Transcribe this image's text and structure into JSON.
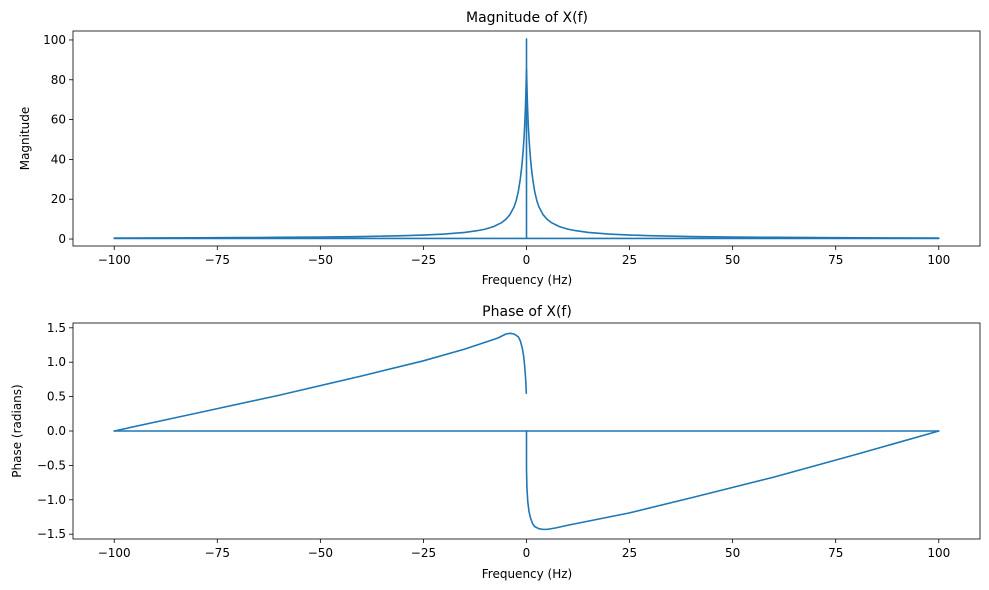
{
  "figure": {
    "background": "#ffffff",
    "series_color": "#1f77b4"
  },
  "chart_data": [
    {
      "type": "line",
      "title": "Magnitude of X(f)",
      "xlabel": "Frequency (Hz)",
      "ylabel": "Magnitude",
      "xlim": [
        -110,
        110
      ],
      "ylim": [
        -3.5,
        104.5
      ],
      "xticks": [
        -100,
        -75,
        -50,
        -25,
        0,
        25,
        50,
        75,
        100
      ],
      "xtick_labels": [
        "−100",
        "−75",
        "−50",
        "−25",
        "0",
        "25",
        "50",
        "75",
        "100"
      ],
      "yticks": [
        0,
        20,
        40,
        60,
        80,
        100
      ],
      "ytick_labels": [
        "0",
        "20",
        "40",
        "60",
        "80",
        "100"
      ],
      "grid": false,
      "series": [
        {
          "x": [
            -100,
            -90,
            -80,
            -70,
            -60,
            -50,
            -40,
            -30,
            -25,
            -20,
            -15,
            -12,
            -10,
            -8,
            -6,
            -5,
            -4,
            -3,
            -2.5,
            -2,
            -1.5,
            -1.2,
            -1,
            -0.8,
            -0.6,
            -0.5,
            -0.4,
            -0.3,
            -0.25,
            -0.2,
            -0.15,
            -0.1,
            -0.05,
            0.01,
            0.05,
            0.1,
            0.15,
            0.2,
            0.25,
            0.3,
            0.4,
            0.5,
            0.6,
            0.8,
            1,
            1.2,
            1.5,
            2,
            2.5,
            3,
            4,
            5,
            6,
            8,
            10,
            12,
            15,
            20,
            25,
            30,
            40,
            50,
            60,
            70,
            80,
            90,
            100
          ],
          "y": [
            0.5,
            0.56,
            0.63,
            0.72,
            0.84,
            1.0,
            1.25,
            1.67,
            2.0,
            2.5,
            3.33,
            4.17,
            4.99,
            6.23,
            8.28,
            9.91,
            12.3,
            16.2,
            19.3,
            23.7,
            30.3,
            35.5,
            39.7,
            44.7,
            50.9,
            54.6,
            58.9,
            63.9,
            66.7,
            69.8,
            73.3,
            77.5,
            81.5,
            85.3,
            81.5,
            77.5,
            73.3,
            69.8,
            66.7,
            63.9,
            58.9,
            54.6,
            50.9,
            44.7,
            39.7,
            35.5,
            30.3,
            23.7,
            19.3,
            16.2,
            12.3,
            9.91,
            8.28,
            6.23,
            4.99,
            4.17,
            3.33,
            2.5,
            2.0,
            1.67,
            1.25,
            1.0,
            0.84,
            0.72,
            0.63,
            0.56,
            0.5
          ]
        },
        {
          "x": [
            0,
            0,
            -100,
            100
          ],
          "y": [
            100.5,
            0.3,
            0.3,
            0.3
          ]
        }
      ]
    },
    {
      "type": "line",
      "title": "Phase of X(f)",
      "xlabel": "Frequency (Hz)",
      "ylabel": "Phase (radians)",
      "xlim": [
        -110,
        110
      ],
      "ylim": [
        -1.57,
        1.57
      ],
      "xticks": [
        -100,
        -75,
        -50,
        -25,
        0,
        25,
        50,
        75,
        100
      ],
      "xtick_labels": [
        "−100",
        "−75",
        "−50",
        "−25",
        "0",
        "25",
        "50",
        "75",
        "100"
      ],
      "yticks": [
        -1.5,
        -1.0,
        -0.5,
        0.0,
        0.5,
        1.0,
        1.5
      ],
      "ytick_labels": [
        "−1.5",
        "−1.0",
        "−0.5",
        "0.0",
        "0.5",
        "1.0",
        "1.5"
      ],
      "grid": false,
      "series": [
        {
          "x": [
            -100,
            -80,
            -60,
            -40,
            -25,
            -15,
            -10,
            -7,
            -5,
            -4,
            -3,
            -2,
            -1.5,
            -1,
            -0.7,
            -0.5,
            -0.3,
            -0.15,
            -0.05
          ],
          "y": [
            0.0,
            0.26,
            0.52,
            0.8,
            1.02,
            1.19,
            1.29,
            1.35,
            1.41,
            1.42,
            1.41,
            1.37,
            1.31,
            1.2,
            1.09,
            0.98,
            0.84,
            0.7,
            0.55
          ]
        },
        {
          "x": [
            -100,
            0,
            0
          ],
          "y": [
            0.0,
            0.0,
            0.0
          ]
        },
        {
          "x": [
            0,
            0,
            0.1,
            0.3,
            0.6,
            1,
            1.5,
            2,
            3,
            4,
            5,
            7,
            10,
            15,
            25,
            40,
            60,
            80,
            100
          ],
          "y": [
            0.0,
            -0.55,
            -0.82,
            -1.02,
            -1.17,
            -1.27,
            -1.35,
            -1.39,
            -1.42,
            -1.43,
            -1.43,
            -1.41,
            -1.37,
            -1.31,
            -1.19,
            -0.97,
            -0.67,
            -0.34,
            0.0
          ]
        },
        {
          "x": [
            0,
            100
          ],
          "y": [
            0.0,
            0.0
          ]
        }
      ]
    }
  ]
}
